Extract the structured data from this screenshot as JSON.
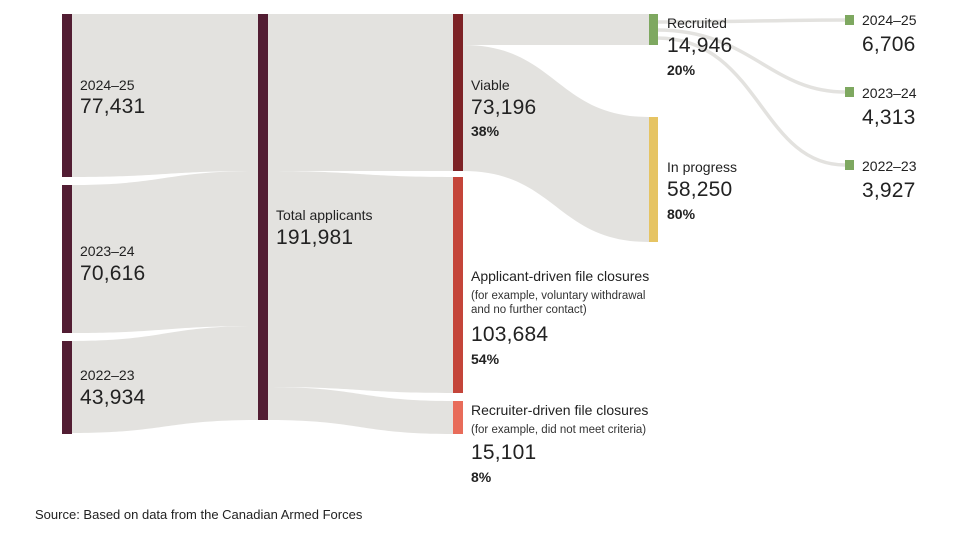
{
  "colors": {
    "flow": "#e3e2df",
    "years": "#521d33",
    "total": "#521d33",
    "viable": "#7d2226",
    "applicant": "#c4453a",
    "recruiter": "#e86c5a",
    "recruited": "#7ea860",
    "in_progress": "#e6c463",
    "recruited_year": "#7ea860"
  },
  "years": [
    {
      "label": "2024–25",
      "value": "77,431"
    },
    {
      "label": "2023–24",
      "value": "70,616"
    },
    {
      "label": "2022–23",
      "value": "43,934"
    }
  ],
  "total": {
    "label": "Total applicants",
    "value": "191,981"
  },
  "outcomes": {
    "viable": {
      "label": "Viable",
      "value": "73,196",
      "pct": "38%"
    },
    "applicant": {
      "label": "Applicant-driven file closures",
      "note1": "(for example, voluntary withdrawal",
      "note2": "and no further contact)",
      "value": "103,684",
      "pct": "54%"
    },
    "recruiter": {
      "label": "Recruiter-driven file closures",
      "note1": "(for example, did not meet criteria)",
      "value": "15,101",
      "pct": "8%"
    }
  },
  "viable_breakdown": {
    "recruited": {
      "label": "Recruited",
      "value": "14,946",
      "pct": "20%"
    },
    "in_progress": {
      "label": "In progress",
      "value": "58,250",
      "pct": "80%"
    }
  },
  "recruited_years": [
    {
      "label": "2024–25",
      "value": "6,706"
    },
    {
      "label": "2023–24",
      "value": "4,313"
    },
    {
      "label": "2022–23",
      "value": "3,927"
    }
  ],
  "source": "Source: Based on data from the Canadian Armed Forces"
}
